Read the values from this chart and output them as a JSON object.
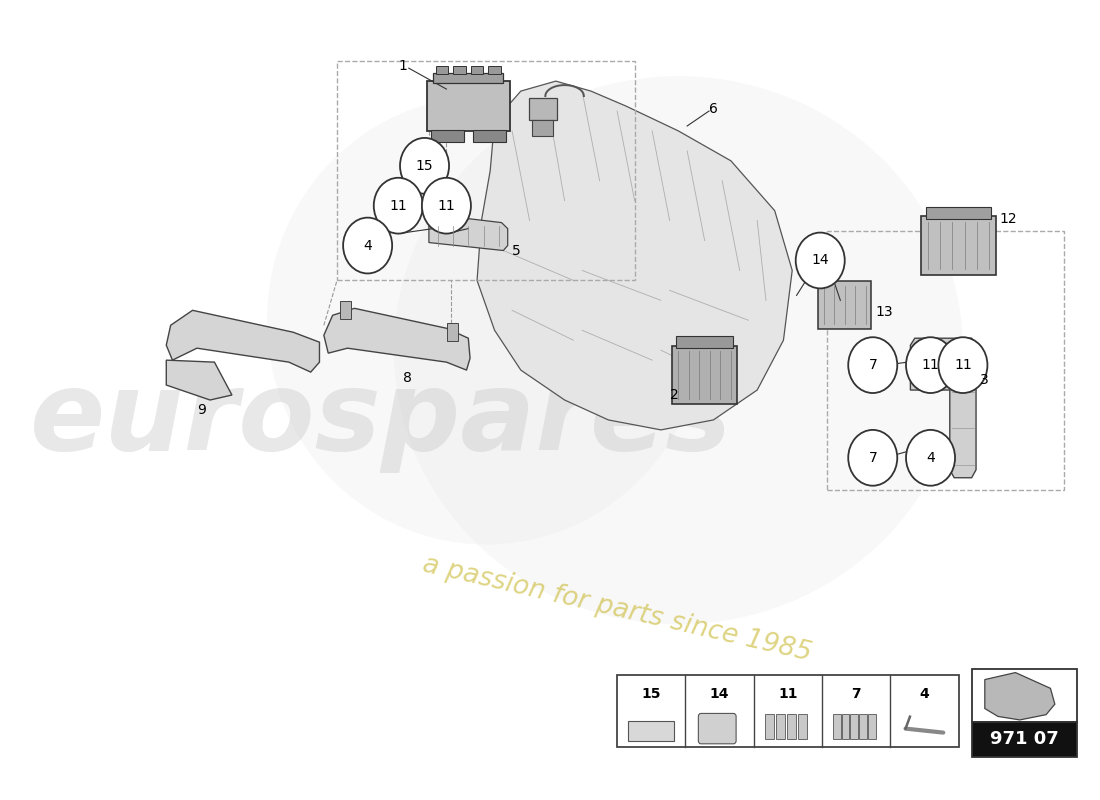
{
  "bg_color": "#ffffff",
  "watermark1": "eurospares",
  "watermark2": "a passion for parts since 1985",
  "part_number": "971 07",
  "line_color": "#333333",
  "dashed_color": "#999999"
}
